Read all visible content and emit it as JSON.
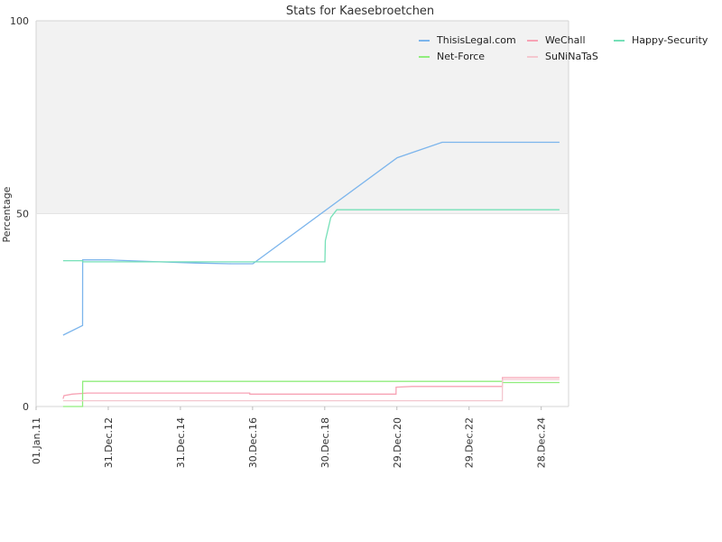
{
  "chart_data": {
    "type": "line",
    "title": "Stats for Kaesebroetchen",
    "xlabel": "",
    "ylabel": "Percentage",
    "ylim": [
      0,
      100
    ],
    "y_ticks": [
      "0",
      "50",
      "100"
    ],
    "x_ticks": [
      {
        "label": "01.Jan.11",
        "date": "2011-01-01"
      },
      {
        "label": "31.Dec.12",
        "date": "2012-12-31"
      },
      {
        "label": "31.Dec.14",
        "date": "2014-12-31"
      },
      {
        "label": "30.Dec.16",
        "date": "2016-12-30"
      },
      {
        "label": "30.Dec.18",
        "date": "2018-12-30"
      },
      {
        "label": "29.Dec.20",
        "date": "2020-12-29"
      },
      {
        "label": "29.Dec.22",
        "date": "2022-12-29"
      },
      {
        "label": "28.Dec.24",
        "date": "2024-12-28"
      }
    ],
    "xlim": [
      "2011-01-01",
      "2025-10-01"
    ],
    "upper_band_from": 50,
    "upper_band_color": "#f2f2f2",
    "grid": false,
    "legend_position": "top-right",
    "series": [
      {
        "name": "ThisisLegal.com",
        "color": "#7cb5ec",
        "points": [
          [
            "2011-10-01",
            18.5
          ],
          [
            "2012-04-15",
            21
          ],
          [
            "2012-04-16",
            38
          ],
          [
            "2013-01-01",
            38
          ],
          [
            "2014-06-01",
            37.5
          ],
          [
            "2015-06-01",
            37.2
          ],
          [
            "2016-06-01",
            37
          ],
          [
            "2017-01-01",
            37
          ],
          [
            "2021-01-01",
            64.5
          ],
          [
            "2022-04-01",
            68.5
          ],
          [
            "2025-07-01",
            68.5
          ]
        ]
      },
      {
        "name": "WeChall",
        "color": "#f7a3b5",
        "points": [
          [
            "2011-10-01",
            2
          ],
          [
            "2011-10-10",
            2.8
          ],
          [
            "2012-01-01",
            3.2
          ],
          [
            "2012-06-01",
            3.5
          ],
          [
            "2016-12-01",
            3.5
          ],
          [
            "2016-12-02",
            3.2
          ],
          [
            "2020-12-20",
            3.2
          ],
          [
            "2020-12-21",
            5
          ],
          [
            "2021-06-01",
            5.2
          ],
          [
            "2023-12-01",
            5.2
          ],
          [
            "2023-12-02",
            7.5
          ],
          [
            "2025-07-01",
            7.5
          ]
        ]
      },
      {
        "name": "Happy-Security",
        "color": "#76e0b8",
        "points": [
          [
            "2011-10-01",
            37.8
          ],
          [
            "2012-04-15",
            37.8
          ],
          [
            "2012-04-16",
            37.5
          ],
          [
            "2019-01-01",
            37.5
          ],
          [
            "2019-01-05",
            43
          ],
          [
            "2019-03-01",
            49
          ],
          [
            "2019-05-01",
            51
          ],
          [
            "2025-07-01",
            51
          ]
        ]
      },
      {
        "name": "Net-Force",
        "color": "#90ed7d",
        "points": [
          [
            "2011-10-01",
            0
          ],
          [
            "2012-04-15",
            0
          ],
          [
            "2012-04-16",
            6.5
          ],
          [
            "2023-12-01",
            6.5
          ],
          [
            "2023-12-02",
            6.2
          ],
          [
            "2025-07-01",
            6.2
          ]
        ]
      },
      {
        "name": "SuNiNaTaS",
        "color": "#f4c7cf",
        "points": [
          [
            "2011-10-01",
            1.5
          ],
          [
            "2023-12-01",
            1.5
          ],
          [
            "2023-12-02",
            7
          ],
          [
            "2025-07-01",
            7
          ]
        ]
      }
    ]
  }
}
